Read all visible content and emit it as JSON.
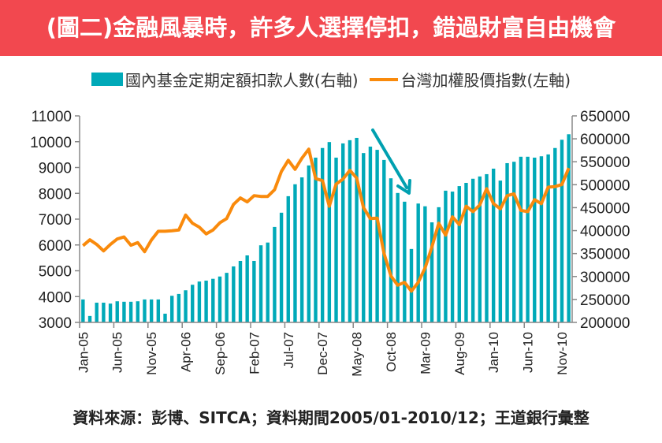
{
  "title": "(圖二)金融風暴時，許多人選擇停扣，錯過財富自由機會",
  "footer": "資料來源：彭博、SITCA；資料期間2005/01-2010/12；王道銀行彙整",
  "colors": {
    "title_bg": "#f2484f",
    "bars": "#00a9b8",
    "line": "#f98a0c",
    "arrow": "#00a0b0"
  },
  "chart_data": {
    "type": "bar+line",
    "title": "(圖二)金融風暴時，許多人選擇停扣，錯過財富自由機會",
    "x_tick_labels": [
      "Jan-05",
      "Jun-05",
      "Nov-05",
      "Apr-06",
      "Sep-06",
      "Feb-07",
      "Jul-07",
      "Dec-07",
      "May-08",
      "Oct-08",
      "Mar-09",
      "Aug-09",
      "Jan-10",
      "Jun-10",
      "Nov-10"
    ],
    "x_start": "2005-01",
    "x_end": "2010-12",
    "months": 72,
    "left_axis": {
      "ylim": [
        3000,
        11000
      ],
      "ticks": [
        "3000",
        "4000",
        "5000",
        "6000",
        "7000",
        "8000",
        "9000",
        "10000",
        "11000"
      ]
    },
    "right_axis": {
      "ylim": [
        200000,
        650000
      ],
      "ticks": [
        "200000",
        "250000",
        "300000",
        "350000",
        "400000",
        "450000",
        "500000",
        "550000",
        "600000",
        "650000"
      ]
    },
    "legend_placement": "top",
    "series": [
      {
        "name": "國內基金定期定額扣款人數(右軸)",
        "type": "bar",
        "axis": "right",
        "values": [
          250000,
          214000,
          243000,
          243000,
          241000,
          246000,
          245000,
          245000,
          246000,
          250000,
          250000,
          250000,
          219000,
          258000,
          262000,
          270000,
          282000,
          289000,
          291000,
          295000,
          300000,
          308000,
          322000,
          334000,
          346000,
          334000,
          368000,
          374000,
          408000,
          439000,
          475000,
          501000,
          516000,
          542000,
          559000,
          580000,
          593000,
          559000,
          590000,
          597000,
          602000,
          569000,
          583000,
          576000,
          554000,
          514000,
          482000,
          463000,
          360000,
          459000,
          453000,
          418000,
          451000,
          487000,
          485000,
          497000,
          504000,
          513000,
          518000,
          523000,
          535000,
          509000,
          547000,
          550000,
          561000,
          561000,
          559000,
          562000,
          566000,
          580000,
          598000,
          610000
        ]
      },
      {
        "name": "台灣加權股價指數(左軸)",
        "type": "line",
        "axis": "left",
        "values": [
          5970,
          6200,
          6020,
          5770,
          6020,
          6230,
          6310,
          5990,
          6090,
          5740,
          6190,
          6530,
          6530,
          6550,
          6580,
          7160,
          6840,
          6690,
          6430,
          6580,
          6860,
          7020,
          7570,
          7820,
          7670,
          7910,
          7880,
          7880,
          8140,
          8850,
          9280,
          8930,
          9360,
          9710,
          8570,
          8490,
          7500,
          8360,
          8550,
          8890,
          8590,
          7450,
          7020,
          7040,
          5670,
          4800,
          4440,
          4550,
          4210,
          4550,
          5110,
          5920,
          6840,
          6380,
          7090,
          6790,
          7500,
          7290,
          7550,
          8180,
          7600,
          7400,
          7910,
          7980,
          7340,
          7290,
          7750,
          7600,
          8240,
          8260,
          8340,
          8980
        ]
      }
    ]
  }
}
